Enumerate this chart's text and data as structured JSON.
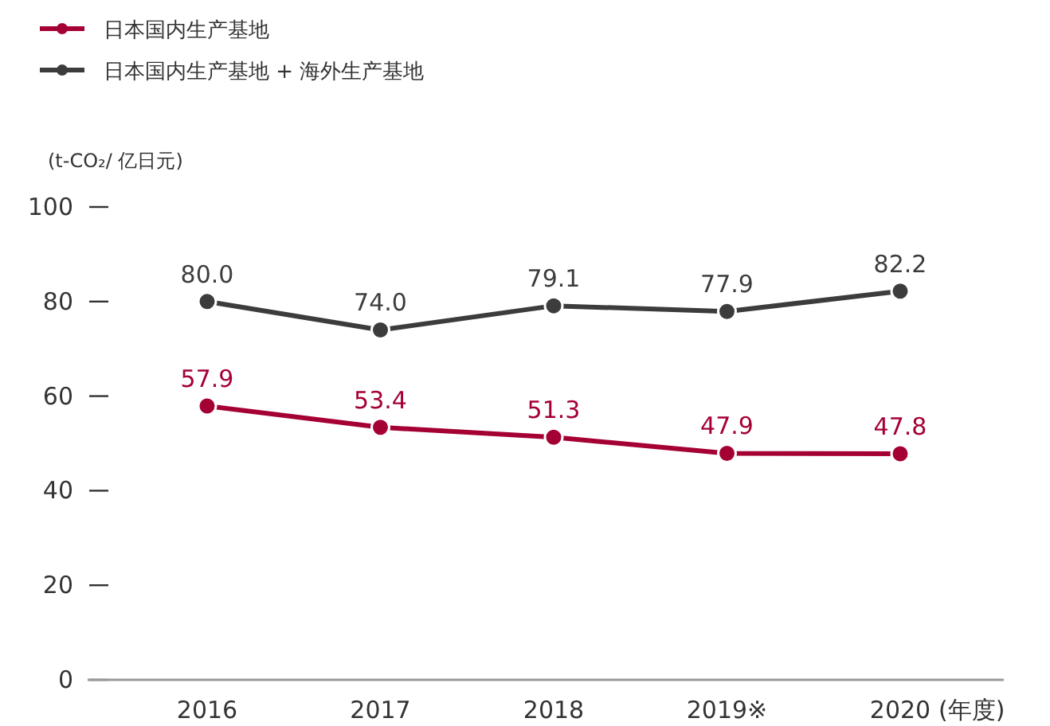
{
  "chart_data": {
    "type": "line",
    "ylabel": "(t-CO₂/ 亿日元)",
    "xlabel": "(年度)",
    "categories": [
      "2016",
      "2017",
      "2018",
      "2019※",
      "2020"
    ],
    "series": [
      {
        "name": "日本国内生产基地",
        "color": "#a50034",
        "values": [
          57.9,
          53.4,
          51.3,
          47.9,
          47.8
        ],
        "value_labels": [
          "57.9",
          "53.4",
          "51.3",
          "47.9",
          "47.8"
        ]
      },
      {
        "name": "日本国内生产基地 + 海外生产基地",
        "color": "#3c3c3c",
        "values": [
          80.0,
          74.0,
          79.1,
          77.9,
          82.2
        ],
        "value_labels": [
          "80.0",
          "74.0",
          "79.1",
          "77.9",
          "82.2"
        ]
      }
    ],
    "ylim": [
      0,
      100
    ],
    "yticks": [
      0,
      20,
      40,
      60,
      80,
      100
    ],
    "grid": false,
    "legend": "top left",
    "marker": "circle",
    "line_style": "solid"
  }
}
